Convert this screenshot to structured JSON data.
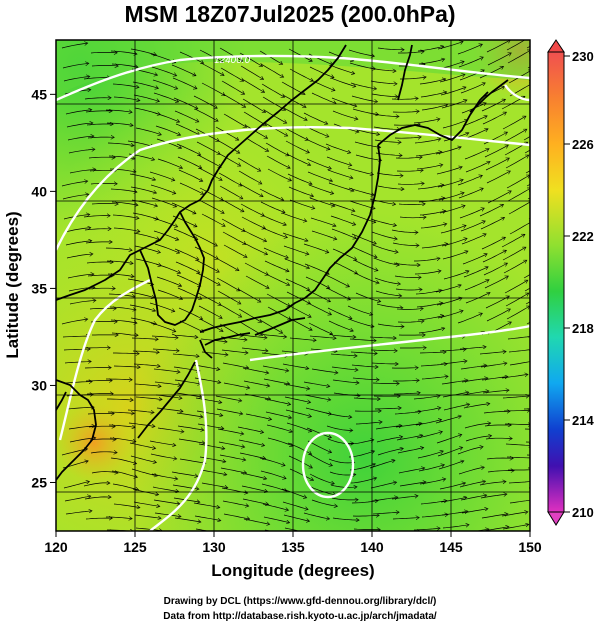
{
  "title": "MSM 18Z07Jul2025 (200.0hPa)",
  "x_axis": {
    "label": "Longitude (degrees)",
    "range": [
      120,
      150
    ],
    "ticks": [
      "120",
      "125",
      "130",
      "135",
      "140",
      "145",
      "150"
    ]
  },
  "y_axis": {
    "label": "Latitude  (degrees)",
    "range": [
      22.5,
      47.8
    ],
    "ticks": [
      "25",
      "30",
      "35",
      "40",
      "45"
    ]
  },
  "colorbar": {
    "range": [
      210,
      230
    ],
    "ticks": [
      "230",
      "226",
      "222",
      "218",
      "214",
      "210"
    ]
  },
  "contour_label": "12400.0",
  "credits": {
    "line1": "Drawing by DCL (https://www.gfd-dennou.org/library/dcl/)",
    "line2": "Data from http://database.rish.kyoto-u.ac.jp/arch/jmadata/"
  }
}
